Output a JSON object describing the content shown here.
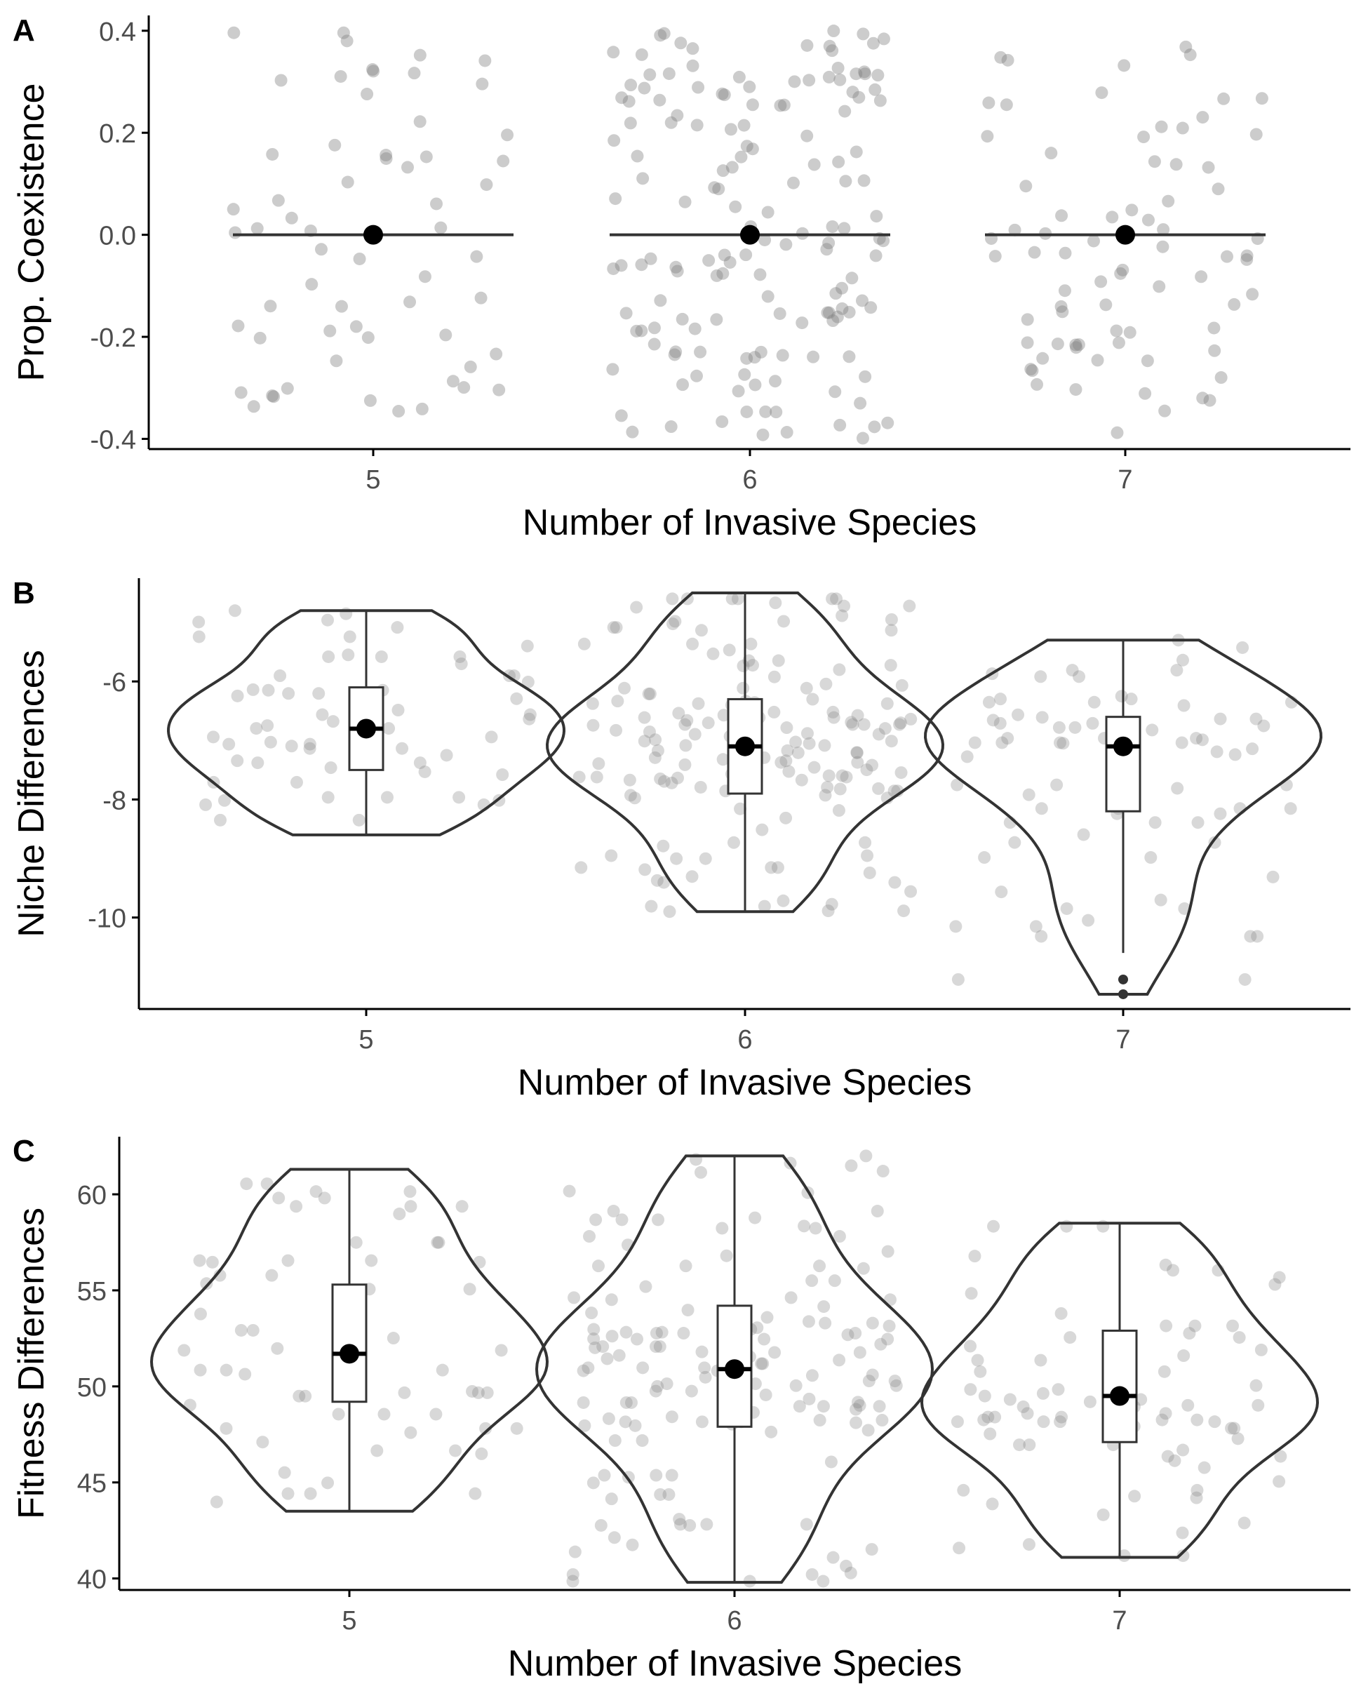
{
  "chart_data": [
    {
      "panel": "A",
      "type": "scatter",
      "xlabel": "Number of Invasive Species",
      "ylabel": "Prop. Coexistence",
      "categories": [
        "5",
        "6",
        "7"
      ],
      "ylim": [
        -0.42,
        0.43
      ],
      "yticks": [
        -0.4,
        -0.2,
        0.0,
        0.2,
        0.4
      ],
      "ytick_labels": [
        "-0.4",
        "-0.2",
        "0.0",
        "0.2",
        "0.4"
      ],
      "summary": [
        {
          "category": "5",
          "mean": 0.0,
          "lower": 0.0,
          "upper": 0.0
        },
        {
          "category": "6",
          "mean": 0.0,
          "lower": 0.0,
          "upper": 0.0
        },
        {
          "category": "7",
          "mean": 0.0,
          "lower": 0.0,
          "upper": 0.0
        }
      ],
      "points": [
        {
          "category": "5",
          "n": 60,
          "ymin": -0.4,
          "ymax": 0.4
        },
        {
          "category": "6",
          "n": 150,
          "ymin": -0.4,
          "ymax": 0.4
        },
        {
          "category": "7",
          "n": 75,
          "ymin": -0.4,
          "ymax": 0.37
        }
      ],
      "grid": false,
      "legend": "none"
    },
    {
      "panel": "B",
      "type": "violin",
      "xlabel": "Number of Invasive Species",
      "ylabel": "Niche Differences",
      "categories": [
        "5",
        "6",
        "7"
      ],
      "ylim": [
        -11.55,
        -4.25
      ],
      "yticks": [
        -10,
        -8,
        -6
      ],
      "ytick_labels": [
        "-10",
        "-8",
        "-6"
      ],
      "series": [
        {
          "category": "5",
          "min": -8.6,
          "q1": -7.5,
          "median": -6.8,
          "q3": -6.1,
          "max": -4.8,
          "mean": -6.8,
          "outliers": [],
          "n_points": 60
        },
        {
          "category": "6",
          "min": -9.9,
          "q1": -7.9,
          "median": -7.1,
          "q3": -6.3,
          "max": -4.5,
          "mean": -7.1,
          "outliers": [],
          "n_points": 150
        },
        {
          "category": "7",
          "min": -10.6,
          "q1": -8.2,
          "median": -7.1,
          "q3": -6.6,
          "max": -5.3,
          "mean": -7.1,
          "outliers": [
            -11.05,
            -11.3
          ],
          "n_points": 75
        }
      ],
      "grid": false,
      "legend": "none"
    },
    {
      "panel": "C",
      "type": "violin",
      "xlabel": "Number of Invasive Species",
      "ylabel": "Fitness Differences",
      "categories": [
        "5",
        "6",
        "7"
      ],
      "ylim": [
        39.4,
        63.0
      ],
      "yticks": [
        40,
        45,
        50,
        55,
        60
      ],
      "ytick_labels": [
        "40",
        "45",
        "50",
        "55",
        "60"
      ],
      "series": [
        {
          "category": "5",
          "min": 43.5,
          "q1": 49.2,
          "median": 51.7,
          "q3": 55.3,
          "max": 61.3,
          "mean": 51.7,
          "outliers": [],
          "n_points": 60
        },
        {
          "category": "6",
          "min": 39.8,
          "q1": 47.9,
          "median": 50.9,
          "q3": 54.2,
          "max": 62.0,
          "mean": 50.9,
          "outliers": [],
          "n_points": 150
        },
        {
          "category": "7",
          "min": 41.1,
          "q1": 47.1,
          "median": 49.5,
          "q3": 52.9,
          "max": 58.5,
          "mean": 49.5,
          "outliers": [],
          "n_points": 75
        }
      ],
      "grid": false,
      "legend": "none"
    }
  ],
  "panel_tags": [
    "A",
    "B",
    "C"
  ],
  "colors": {
    "ink": "#000000",
    "axis_text": "#4d4d4d",
    "violin_stroke": "#333333",
    "jitter_point": "#7f7f7f"
  }
}
